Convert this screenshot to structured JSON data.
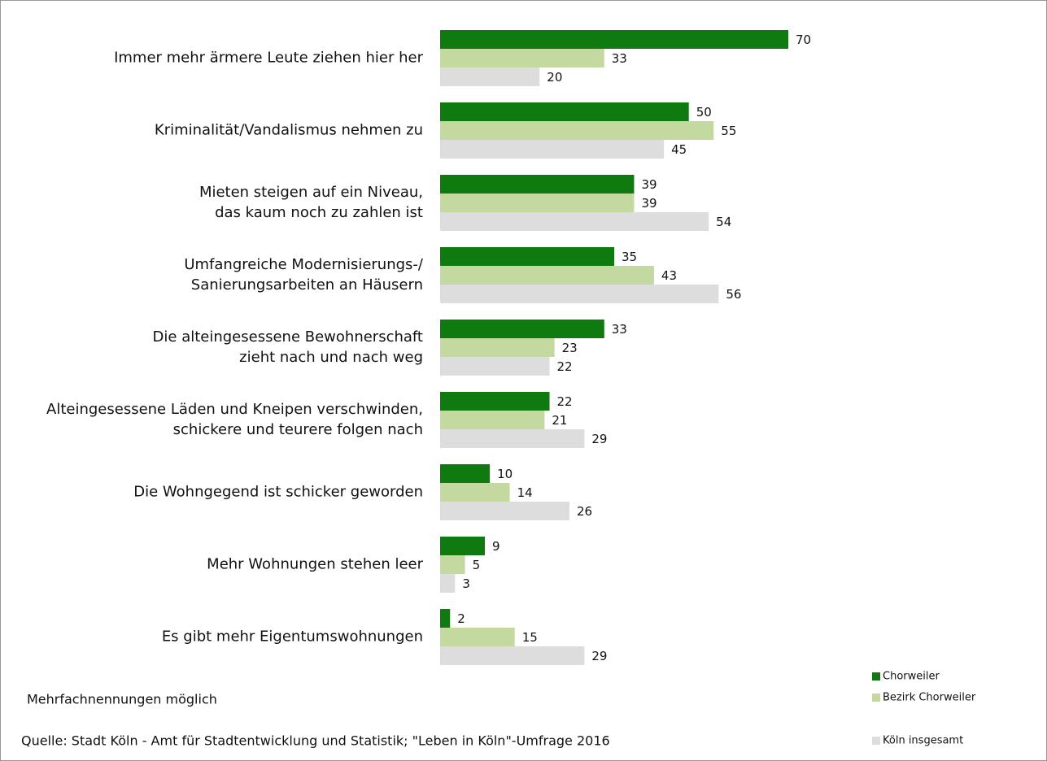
{
  "chart_data": {
    "type": "bar",
    "orientation": "horizontal",
    "categories": [
      [
        "Immer mehr ärmere Leute ziehen hier her"
      ],
      [
        "Kriminalität/Vandalismus nehmen zu"
      ],
      [
        "Mieten steigen auf ein Niveau,",
        "das kaum noch zu zahlen ist"
      ],
      [
        "Umfangreiche Modernisierungs-/",
        "Sanierungsarbeiten an Häusern"
      ],
      [
        "Die alteingesessene Bewohnerschaft",
        "zieht nach und nach weg"
      ],
      [
        "Alteingesessene Läden und Kneipen verschwinden,",
        "schickere und teurere folgen nach"
      ],
      [
        "Die Wohngegend ist schicker geworden"
      ],
      [
        "Mehr Wohnungen stehen leer"
      ],
      [
        "Es gibt mehr Eigentumswohnungen"
      ]
    ],
    "series": [
      {
        "name": "Chorweiler",
        "color": "#0e7a10",
        "values": [
          70,
          50,
          39,
          35,
          33,
          22,
          10,
          9,
          2
        ]
      },
      {
        "name": "Bezirk Chorweiler",
        "color": "#c4d9a0",
        "values": [
          33,
          55,
          39,
          43,
          23,
          21,
          14,
          5,
          15
        ]
      },
      {
        "name": "Köln insgesamt",
        "color": "#dddddd",
        "values": [
          20,
          45,
          54,
          56,
          22,
          29,
          26,
          3,
          29
        ]
      }
    ],
    "note": "Mehrfachnennungen  möglich",
    "source": "Quelle: Stadt Köln - Amt für Stadtentwicklung und Statistik; \"Leben in Köln\"-Umfrage 2016",
    "legend": "bottom-right"
  }
}
